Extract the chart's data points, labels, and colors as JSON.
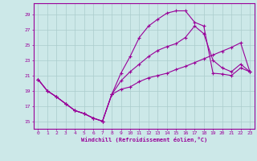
{
  "xlabel": "Windchill (Refroidissement éolien,°C)",
  "bg_color": "#cce8e8",
  "line_color": "#990099",
  "grid_color": "#aacccc",
  "yticks": [
    15,
    17,
    19,
    21,
    23,
    25,
    27,
    29
  ],
  "xticks": [
    0,
    1,
    2,
    3,
    4,
    5,
    6,
    7,
    8,
    9,
    10,
    11,
    12,
    13,
    14,
    15,
    16,
    17,
    18,
    19,
    20,
    21,
    22,
    23
  ],
  "line1_x": [
    0,
    1,
    2,
    3,
    4,
    5,
    6,
    7,
    8,
    9,
    10,
    11,
    12,
    13,
    14,
    15,
    16,
    17,
    18,
    19,
    20,
    21,
    22,
    23
  ],
  "line1_y": [
    20.5,
    19.0,
    18.2,
    17.3,
    16.4,
    16.0,
    15.4,
    15.0,
    18.5,
    21.3,
    23.5,
    26.0,
    27.5,
    28.4,
    29.2,
    29.5,
    29.5,
    28.0,
    27.5,
    21.3,
    21.2,
    21.0,
    22.0,
    21.5
  ],
  "line2_x": [
    0,
    1,
    2,
    3,
    4,
    5,
    6,
    7,
    8,
    9,
    10,
    11,
    12,
    13,
    14,
    15,
    16,
    17,
    18,
    19,
    20,
    21,
    22,
    23
  ],
  "line2_y": [
    20.5,
    19.0,
    18.2,
    17.3,
    16.4,
    16.0,
    15.4,
    15.0,
    18.5,
    20.3,
    21.5,
    22.5,
    23.5,
    24.3,
    24.8,
    25.2,
    26.0,
    27.5,
    26.5,
    23.0,
    22.0,
    21.5,
    22.5,
    21.5
  ],
  "line3_x": [
    0,
    1,
    2,
    3,
    4,
    5,
    6,
    7,
    8,
    9,
    10,
    11,
    12,
    13,
    14,
    15,
    16,
    17,
    18,
    19,
    20,
    21,
    22,
    23
  ],
  "line3_y": [
    20.5,
    19.0,
    18.2,
    17.3,
    16.4,
    16.0,
    15.4,
    15.0,
    18.5,
    19.2,
    19.5,
    20.2,
    20.7,
    21.0,
    21.3,
    21.8,
    22.2,
    22.7,
    23.2,
    23.7,
    24.2,
    24.7,
    25.3,
    21.5
  ]
}
